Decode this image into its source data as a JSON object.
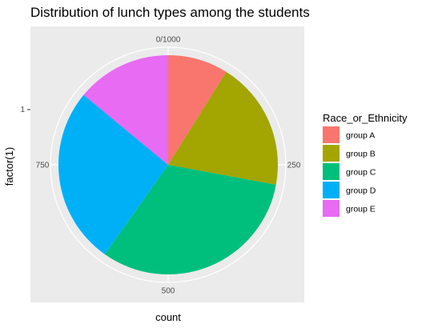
{
  "chart_data": {
    "type": "pie",
    "title": "Distribution of lunch types among the students",
    "xlabel": "count",
    "ylabel": "factor(1)",
    "y_tick_labels": [
      "1"
    ],
    "radial_ticks": [
      {
        "value": 0,
        "label": "0/1000"
      },
      {
        "value": 250,
        "label": "250"
      },
      {
        "value": 500,
        "label": "500"
      },
      {
        "value": 750,
        "label": "750"
      }
    ],
    "total": 1000,
    "legend_title": "Race_or_Ethnicity",
    "legend_position": "right",
    "categories": [
      "group A",
      "group B",
      "group C",
      "group D",
      "group E"
    ],
    "values": [
      89,
      190,
      319,
      262,
      140
    ],
    "colors": [
      "#F8766D",
      "#A3A500",
      "#00BF7D",
      "#00B0F6",
      "#E76BF3"
    ]
  }
}
